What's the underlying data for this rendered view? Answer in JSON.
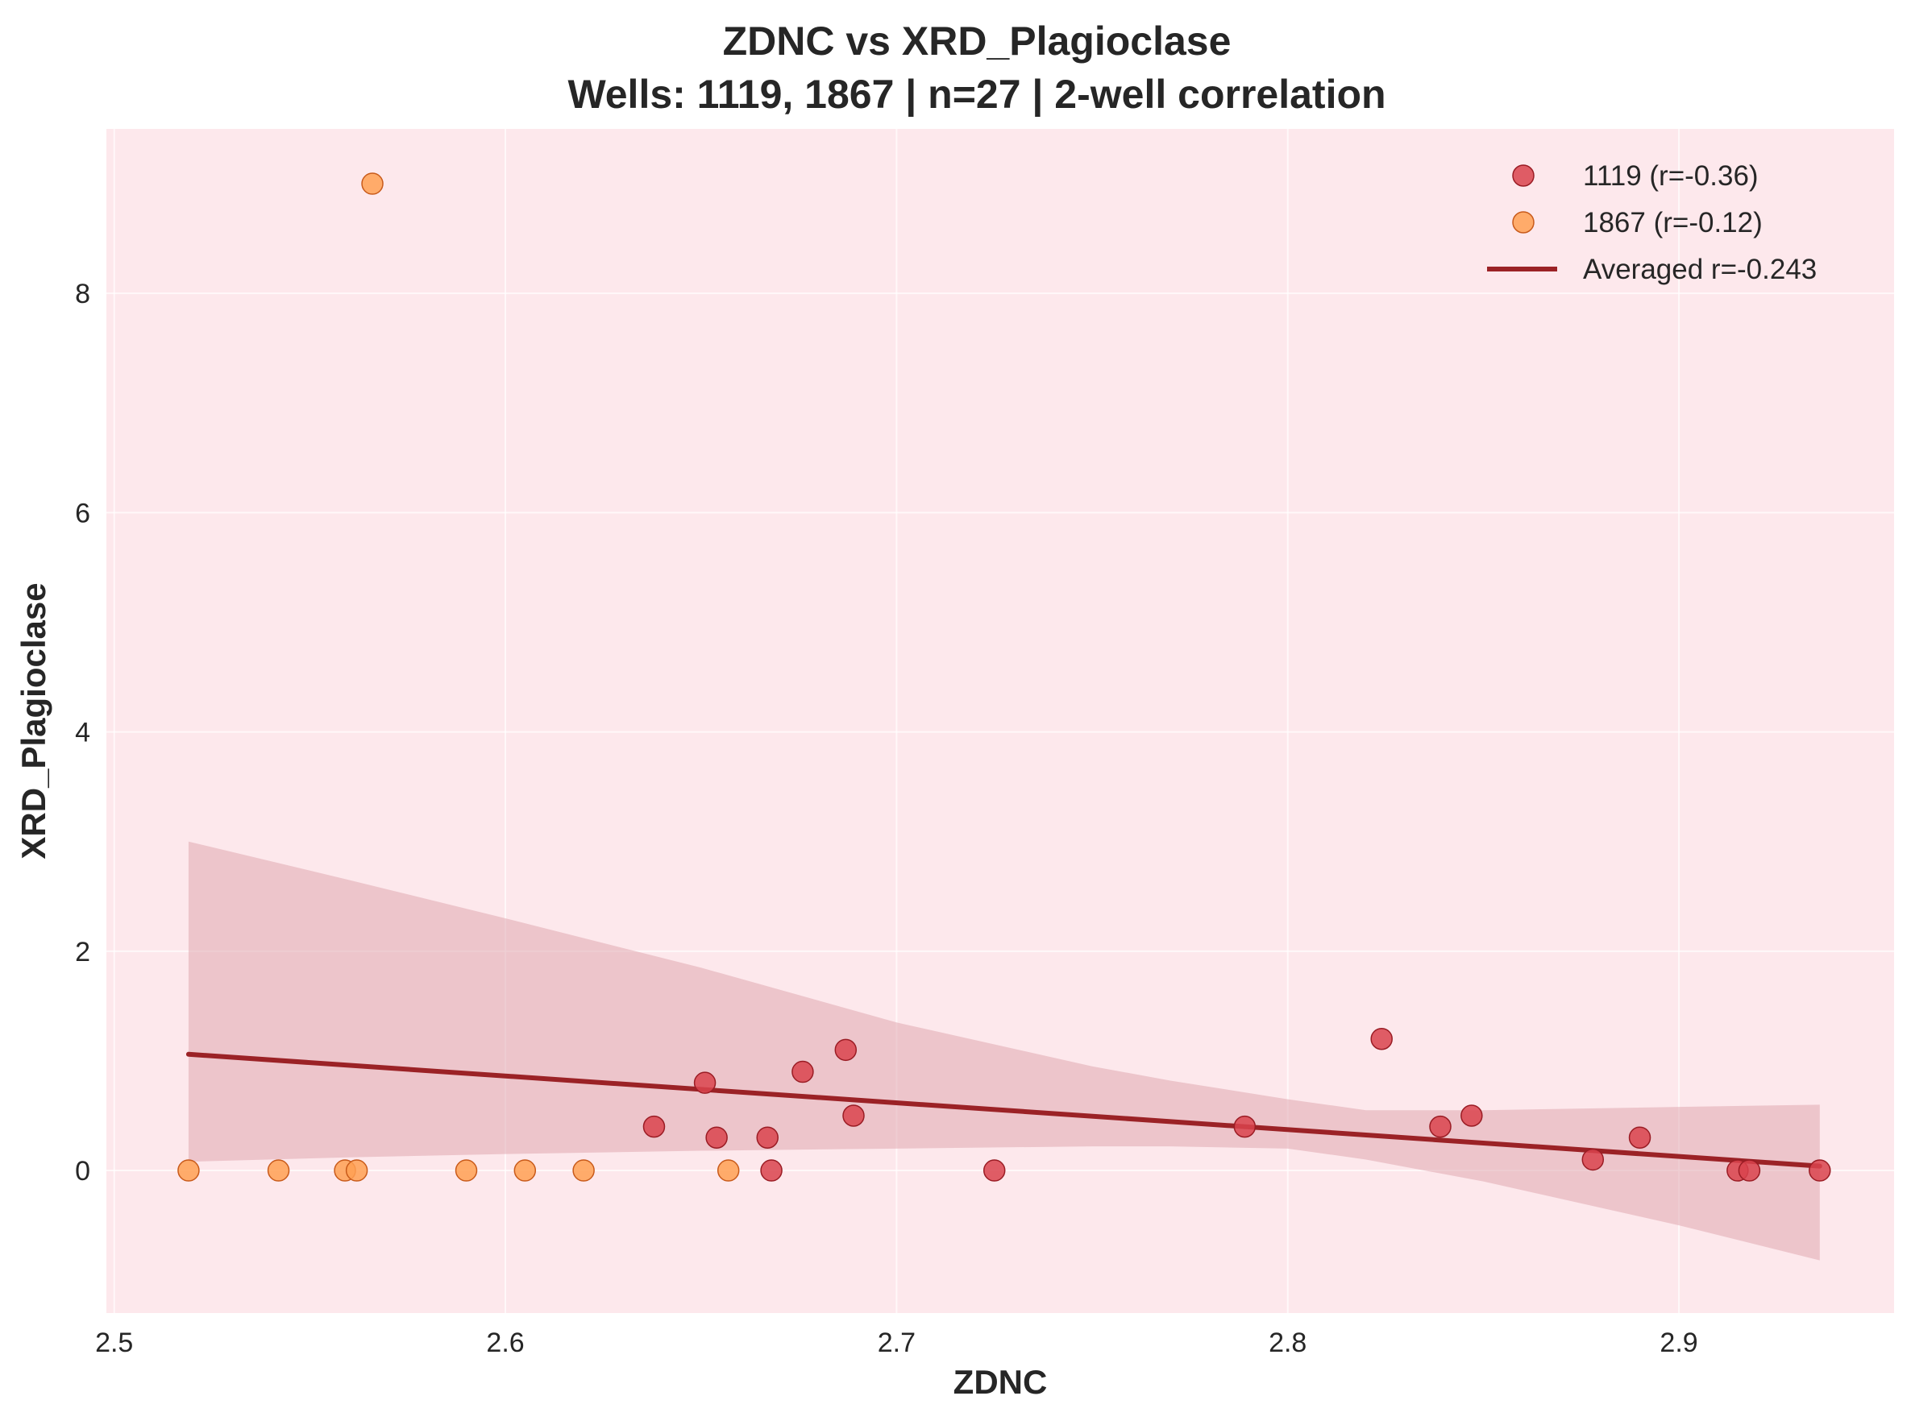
{
  "chart_data": {
    "type": "scatter",
    "title": "ZDNC vs XRD_Plagioclase",
    "subtitle": "Wells: 1119, 1867 | n=27 | 2-well correlation",
    "xlabel": "ZDNC",
    "ylabel": "XRD_Plagioclase",
    "xlim": [
      2.498,
      2.955
    ],
    "ylim": [
      -1.3,
      9.5
    ],
    "x_ticks": [
      2.5,
      2.6,
      2.7,
      2.8,
      2.9
    ],
    "x_tick_labels": [
      "2.5",
      "2.6",
      "2.7",
      "2.8",
      "2.9"
    ],
    "y_ticks": [
      0,
      2,
      4,
      6,
      8
    ],
    "y_tick_labels": [
      "0",
      "2",
      "4",
      "6",
      "8"
    ],
    "grid": true,
    "legend_position": "top-right",
    "background_color": "#fde8ec",
    "series": [
      {
        "name": "1119 (r=-0.36)",
        "color": "#d9434e",
        "edge_color": "#9a1c24",
        "points": [
          [
            2.638,
            0.4
          ],
          [
            2.651,
            0.8
          ],
          [
            2.654,
            0.3
          ],
          [
            2.667,
            0.3
          ],
          [
            2.668,
            0.0
          ],
          [
            2.676,
            0.9
          ],
          [
            2.687,
            1.1
          ],
          [
            2.689,
            0.5
          ],
          [
            2.725,
            0.0
          ],
          [
            2.789,
            0.4
          ],
          [
            2.824,
            1.2
          ],
          [
            2.839,
            0.4
          ],
          [
            2.847,
            0.5
          ],
          [
            2.878,
            0.1
          ],
          [
            2.89,
            0.3
          ],
          [
            2.915,
            0.0
          ],
          [
            2.918,
            0.0
          ],
          [
            2.936,
            0.0
          ]
        ]
      },
      {
        "name": "1867 (r=-0.12)",
        "color": "#ffa054",
        "edge_color": "#c85a1a",
        "points": [
          [
            2.519,
            0.0
          ],
          [
            2.542,
            0.0
          ],
          [
            2.559,
            0.0
          ],
          [
            2.562,
            0.0
          ],
          [
            2.566,
            9.0
          ],
          [
            2.59,
            0.0
          ],
          [
            2.605,
            0.0
          ],
          [
            2.62,
            0.0
          ],
          [
            2.657,
            0.0
          ]
        ]
      }
    ],
    "regression": {
      "name": "Averaged r=-0.243",
      "color": "#9b2226",
      "x": [
        2.519,
        2.936
      ],
      "y": [
        1.06,
        0.04
      ]
    },
    "confidence_band": {
      "color": "#e0a8b0",
      "x": [
        2.519,
        2.56,
        2.6,
        2.65,
        2.7,
        2.75,
        2.77,
        2.8,
        2.82,
        2.85,
        2.9,
        2.936
      ],
      "upper": [
        3.0,
        2.65,
        2.3,
        1.85,
        1.35,
        0.95,
        0.82,
        0.65,
        0.55,
        0.55,
        0.58,
        0.6
      ],
      "lower": [
        0.08,
        0.12,
        0.15,
        0.18,
        0.2,
        0.22,
        0.22,
        0.2,
        0.1,
        -0.1,
        -0.5,
        -0.82
      ]
    }
  }
}
